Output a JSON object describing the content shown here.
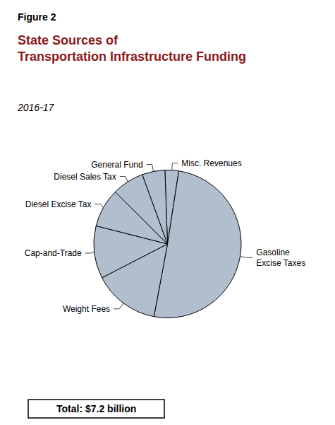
{
  "chart_data": {
    "type": "pie",
    "title": "State Sources of\nTransportation Infrastructure Funding",
    "subtitle": "2016-17",
    "annotations": [
      "Figure 2",
      "Total: $7.2 billion"
    ],
    "categories": [
      "Misc. Revenues",
      "Gasoline\nExcise Taxes",
      "Weight Fees",
      "Cap-and-Trade",
      "Diesel Excise Tax",
      "Diesel Sales Tax",
      "General Fund"
    ],
    "values": [
      3.0,
      50.5,
      14.5,
      11.5,
      8.5,
      7.0,
      5.0
    ],
    "color": "#b0bece"
  }
}
